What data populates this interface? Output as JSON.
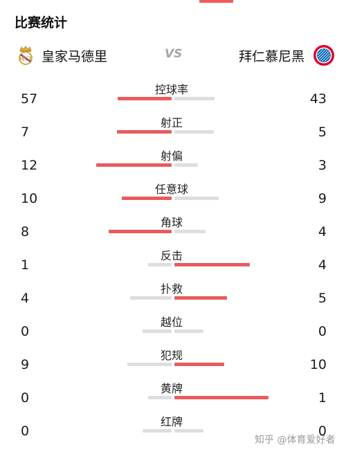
{
  "header": {
    "title": "比赛统计"
  },
  "match": {
    "home_team": "皇家马德里",
    "away_team": "拜仁慕尼黑",
    "vs_label": "VS"
  },
  "colors": {
    "accent": "#ea5b5d",
    "neutral_bar": "#dedede"
  },
  "icons": {
    "home_badge": "real-madrid-crest-icon",
    "away_badge": "bayern-munich-crest-icon"
  },
  "stats": [
    {
      "label": "控球率",
      "home": "57",
      "away": "43"
    },
    {
      "label": "射正",
      "home": "7",
      "away": "5"
    },
    {
      "label": "射偏",
      "home": "12",
      "away": "3"
    },
    {
      "label": "任意球",
      "home": "10",
      "away": "9"
    },
    {
      "label": "角球",
      "home": "8",
      "away": "4"
    },
    {
      "label": "反击",
      "home": "1",
      "away": "4"
    },
    {
      "label": "扑救",
      "home": "4",
      "away": "5"
    },
    {
      "label": "越位",
      "home": "0",
      "away": "0"
    },
    {
      "label": "犯规",
      "home": "9",
      "away": "10"
    },
    {
      "label": "黄牌",
      "home": "0",
      "away": "1"
    },
    {
      "label": "红牌",
      "home": "0",
      "away": "0"
    }
  ],
  "watermark": "知乎 @体育爱好者"
}
